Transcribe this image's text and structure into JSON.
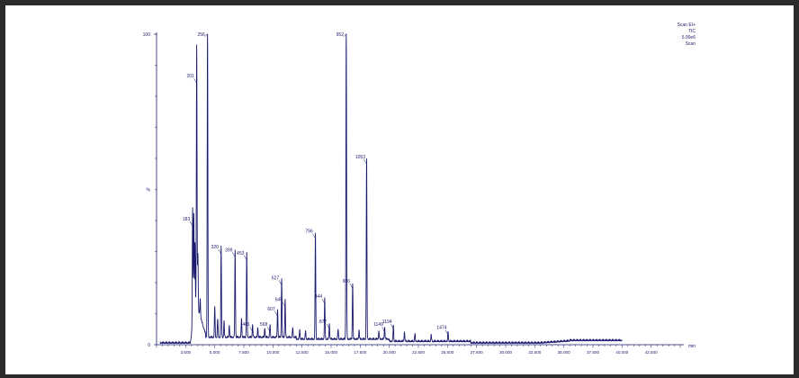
{
  "header": {
    "lines": [
      "Scan EI+",
      "TIC",
      "5.00e6",
      "Scan"
    ]
  },
  "chart_data": {
    "type": "line",
    "title": "",
    "xlabel": "",
    "ylabel": "%",
    "x_unit": "min",
    "xlim": [
      0,
      45
    ],
    "ylim": [
      0,
      100
    ],
    "y_ticks": [
      0,
      100
    ],
    "x_ticks": [
      "2.500",
      "5.000",
      "7.500",
      "10.000",
      "12.500",
      "15.000",
      "17.500",
      "20.000",
      "22.500",
      "25.000",
      "27.500",
      "30.000",
      "32.500",
      "35.000",
      "37.500",
      "40.000",
      "42.500"
    ],
    "color": "#1a1a6e",
    "background": "#ffffff",
    "peaks": [
      {
        "x": 3.1,
        "y": 38,
        "label": "183"
      },
      {
        "x": 3.45,
        "y": 84,
        "label": "201"
      },
      {
        "x": 4.38,
        "y": 100,
        "label": "256"
      },
      {
        "x": 5.55,
        "y": 29,
        "label": "320"
      },
      {
        "x": 6.75,
        "y": 28,
        "label": "399"
      },
      {
        "x": 7.75,
        "y": 27,
        "label": "453"
      },
      {
        "x": 8.25,
        "y": 4,
        "label": "481"
      },
      {
        "x": 9.75,
        "y": 4,
        "label": "568"
      },
      {
        "x": 10.4,
        "y": 9,
        "label": "607"
      },
      {
        "x": 10.75,
        "y": 19,
        "label": "627"
      },
      {
        "x": 11.05,
        "y": 12,
        "label": "645"
      },
      {
        "x": 13.65,
        "y": 34,
        "label": "796"
      },
      {
        "x": 14.45,
        "y": 13,
        "label": "844"
      },
      {
        "x": 14.85,
        "y": 5,
        "label": "877"
      },
      {
        "x": 16.3,
        "y": 100,
        "label": "952"
      },
      {
        "x": 16.85,
        "y": 18,
        "label": "986"
      },
      {
        "x": 18.05,
        "y": 58,
        "label": "1053"
      },
      {
        "x": 19.6,
        "y": 4,
        "label": "1149"
      },
      {
        "x": 20.35,
        "y": 5,
        "label": "1194"
      },
      {
        "x": 25.05,
        "y": 3,
        "label": "1474"
      }
    ]
  }
}
